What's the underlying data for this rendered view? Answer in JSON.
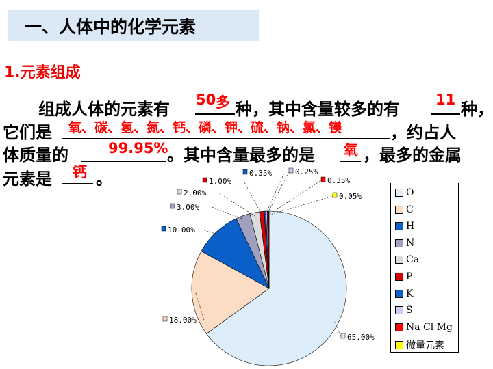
{
  "slide": {
    "title": "一、人体中的化学元素",
    "section": "1.元素组成",
    "lines": [
      {
        "text": "组成人体的元素有",
        "a1": "种，其中含量较多的有",
        "a2": "种，"
      },
      {
        "text": "它们是",
        "a1": "，约占人"
      },
      {
        "text": "体质量的",
        "a1": "。其中含量最多的是",
        "a2": "，最多的金属"
      },
      {
        "text": "元素是",
        "a1": "。"
      }
    ],
    "answers": {
      "total_elements": "50",
      "total_extra": "多",
      "major_count": "11",
      "major_list": "氧、碳、氢、氮、钙、磷、钾、硫、钠、氯、镁",
      "mass_percent": "99.95%",
      "most_abundant": "氧",
      "most_metal": "钙"
    }
  },
  "chart_data": {
    "type": "pie",
    "start": "top, clockwise",
    "legend_position": "right",
    "categories": [
      "O",
      "C",
      "H",
      "N",
      "Ca",
      "P",
      "K",
      "S",
      "Na Cl Mg",
      "微量元素"
    ],
    "values": [
      65.0,
      18.0,
      10.0,
      3.0,
      2.0,
      1.0,
      0.35,
      0.25,
      0.35,
      0.05
    ],
    "data_labels": [
      "65.00%",
      "18.00%",
      "10.00%",
      "3.00%",
      "2.00%",
      "1.00%",
      "0.35%",
      "0.25%",
      "0.35%",
      "0.05%"
    ],
    "colors": [
      "#ddeefa",
      "#fcdcc4",
      "#0a5fc8",
      "#a0a0c0",
      "#dcdcdc",
      "#d80000",
      "#0a5fc8",
      "#ccccf4",
      "#ff0000",
      "#ffff00"
    ]
  }
}
